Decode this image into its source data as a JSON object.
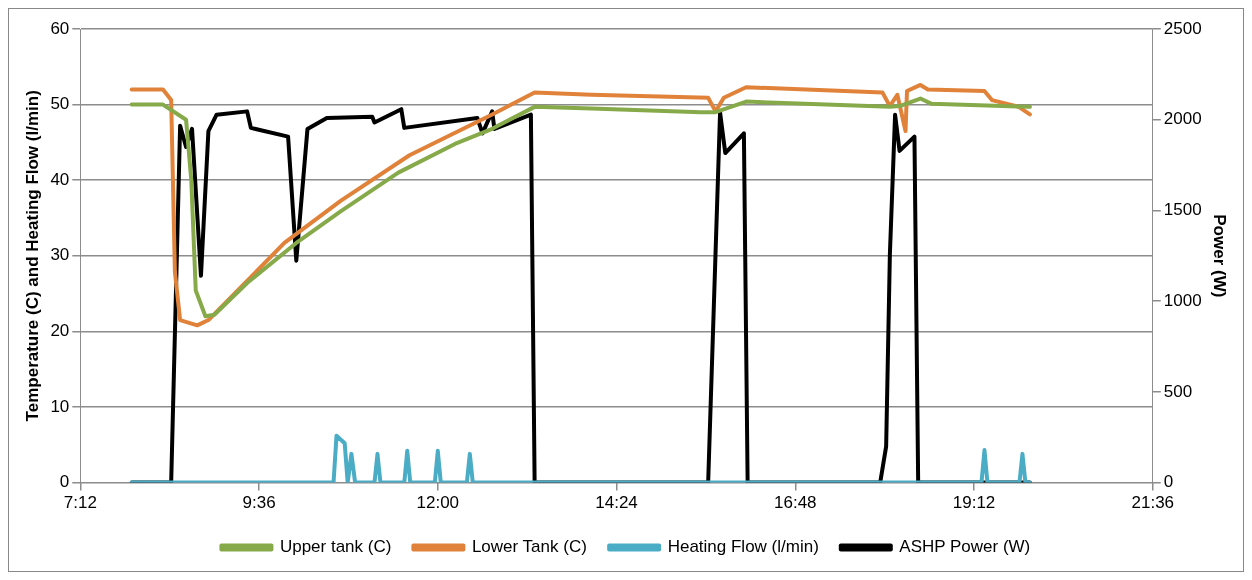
{
  "chart_data": {
    "type": "line",
    "xlabel": null,
    "ylabel": "Temperature (C) and Heating Flow (l/min)",
    "y2label": "Power (W)",
    "xlim": [
      7.2,
      21.6
    ],
    "xticks": [
      {
        "value": 7.2,
        "label": "7:12"
      },
      {
        "value": 9.6,
        "label": "9:36"
      },
      {
        "value": 12,
        "label": "12:00"
      },
      {
        "value": 14.4,
        "label": "14:24"
      },
      {
        "value": 16.8,
        "label": "16:48"
      },
      {
        "value": 19.2,
        "label": "19:12"
      },
      {
        "value": 21.6,
        "label": "21:36"
      }
    ],
    "ylim": [
      0,
      60
    ],
    "yticks": [
      0,
      10,
      20,
      30,
      40,
      50,
      60
    ],
    "y2lim": [
      0,
      2500
    ],
    "y2ticks": [
      0,
      500,
      1000,
      1500,
      2000,
      2500
    ],
    "grid": "y",
    "legend": "bottom",
    "series": [
      {
        "name": "Upper tank (C)",
        "color": "#86a94a",
        "x": [
          7.89,
          8.31,
          8.62,
          8.69,
          8.75,
          8.88,
          9.0,
          9.44,
          10.1,
          10.7,
          11.47,
          12.23,
          12.73,
          13.3,
          14.06,
          15.53,
          15.73,
          16.14,
          18.07,
          18.2,
          18.48,
          18.63,
          19.95
        ],
        "values": [
          50,
          50,
          48,
          40,
          25.4,
          22,
          22.2,
          26.4,
          31.7,
          35.9,
          41,
          44.8,
          46.8,
          49.7,
          49.5,
          49,
          49,
          50.4,
          49.7,
          49.8,
          50.8,
          50.1,
          49.7
        ]
      },
      {
        "name": "Lower Tank (C)",
        "color": "#e0823a",
        "x": [
          7.89,
          8.31,
          8.42,
          8.47,
          8.54,
          8.77,
          8.92,
          9.94,
          10.7,
          11.62,
          12.73,
          13.3,
          14.06,
          15.63,
          15.73,
          15.84,
          16.14,
          17.97,
          18.07,
          18.17,
          18.28,
          18.3,
          18.48,
          18.58,
          19.34,
          19.44,
          19.8,
          19.95
        ],
        "values": [
          52,
          52,
          50.6,
          27.9,
          21.5,
          20.8,
          21.5,
          31.7,
          37.3,
          43.3,
          48.7,
          51.6,
          51.3,
          50.9,
          49.1,
          50.9,
          52.3,
          51.6,
          49.8,
          51.3,
          46.5,
          51.8,
          52.6,
          52,
          51.8,
          50.6,
          49.7,
          48.7
        ]
      },
      {
        "name": "Heating Flow (l/min)",
        "color": "#4bacc6",
        "x": [
          7.89,
          10.6,
          10.64,
          10.75,
          10.79,
          10.84,
          10.89,
          11.15,
          11.19,
          11.23,
          11.55,
          11.59,
          11.63,
          11.96,
          12.0,
          12.04,
          12.39,
          12.43,
          12.47,
          19.3,
          19.34,
          19.38,
          19.81,
          19.85,
          19.89,
          19.95
        ],
        "values": [
          0,
          0,
          6.2,
          5.2,
          0,
          3.8,
          0,
          0,
          3.8,
          0,
          0,
          4.2,
          0,
          0,
          4.2,
          0,
          0,
          3.8,
          0,
          0,
          4.3,
          0,
          0,
          3.8,
          0,
          0
        ]
      },
      {
        "name": "ASHP Power (W)",
        "color": "#000000",
        "axis": "y2",
        "x": [
          7.89,
          8.42,
          8.54,
          8.62,
          8.7,
          8.82,
          8.92,
          9.03,
          9.44,
          9.49,
          9.99,
          10.1,
          10.25,
          10.51,
          11.12,
          11.15,
          11.51,
          11.55,
          12.53,
          12.6,
          12.73,
          12.76,
          13.25,
          13.3,
          15.63,
          15.79,
          15.86,
          16.11,
          16.16,
          17.94,
          18.02,
          18.07,
          18.14,
          18.2,
          18.4,
          18.45,
          19.95
        ],
        "values": [
          0,
          0,
          1967,
          1850,
          1950,
          1140,
          1937,
          2028,
          2046,
          1955,
          1907,
          1223,
          1949,
          2010,
          2016,
          1985,
          2058,
          1955,
          2010,
          1925,
          2046,
          1949,
          2028,
          0,
          0,
          2040,
          1816,
          1925,
          0,
          0,
          200,
          1259,
          2028,
          1828,
          1907,
          0,
          0
        ]
      }
    ]
  }
}
